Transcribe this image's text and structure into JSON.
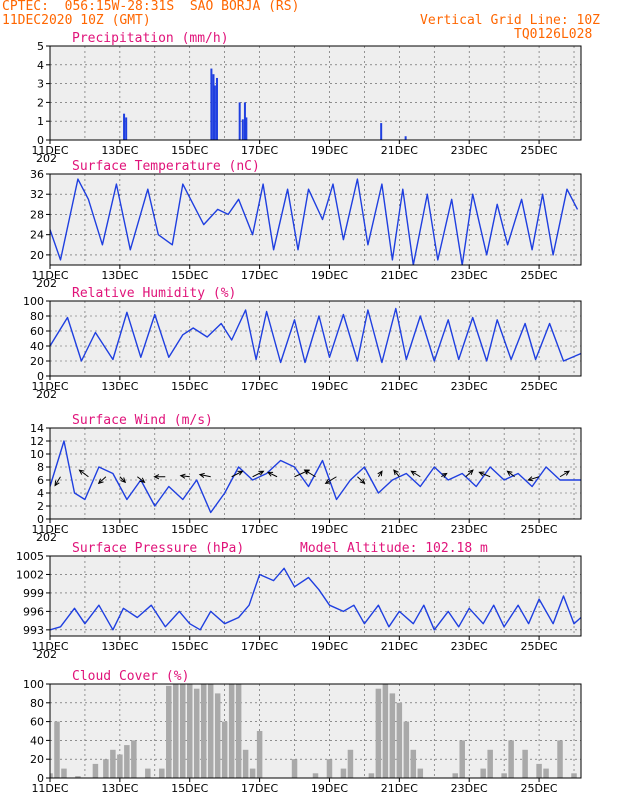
{
  "header": {
    "line1": "CPTEC:  056:15W-28:31S  SAO BORJA (RS)",
    "line2": "11DEC2020 10Z (GMT)",
    "grid_note": "Vertical Grid Line: 10Z",
    "code": "TQ0126L028",
    "year_stub": "202"
  },
  "colors": {
    "header": "#ff6600",
    "title": "#e0137a",
    "line": "#1f3fe0",
    "bar": "#1f3fe0",
    "cloud": "#a9a9a9",
    "plot_bg": "#eeeeee",
    "arrow": "#000000"
  },
  "x_axis": {
    "ticks": [
      "11DEC",
      "13DEC",
      "15DEC",
      "17DEC",
      "19DEC",
      "21DEC",
      "23DEC",
      "25DEC"
    ],
    "start_day": 11,
    "end_day": 26.2
  },
  "chart_data": [
    {
      "type": "bar",
      "title": "Precipitation (mm/h)",
      "ylim": [
        0,
        5
      ],
      "yticks": [
        "0",
        "1",
        "2",
        "3",
        "4",
        "5"
      ],
      "x_days": [
        13.12,
        13.18,
        15.62,
        15.68,
        15.72,
        15.78,
        16.43,
        16.52,
        16.58,
        16.62,
        20.48,
        21.18
      ],
      "values": [
        1.4,
        1.2,
        3.8,
        3.5,
        2.9,
        3.3,
        2.0,
        1.1,
        2.0,
        1.2,
        0.9,
        0.2
      ]
    },
    {
      "type": "line",
      "title": "Surface Temperature (nC)",
      "ylim": [
        18,
        36
      ],
      "yticks": [
        "20",
        "24",
        "28",
        "32",
        "36"
      ],
      "x_days": [
        11.0,
        11.3,
        11.8,
        12.1,
        12.5,
        12.9,
        13.3,
        13.8,
        14.1,
        14.5,
        14.8,
        15.1,
        15.4,
        15.8,
        16.1,
        16.4,
        16.8,
        17.1,
        17.4,
        17.8,
        18.1,
        18.4,
        18.8,
        19.1,
        19.4,
        19.8,
        20.1,
        20.5,
        20.8,
        21.1,
        21.4,
        21.8,
        22.1,
        22.5,
        22.8,
        23.1,
        23.5,
        23.8,
        24.1,
        24.5,
        24.8,
        25.1,
        25.4,
        25.8,
        26.1
      ],
      "values": [
        25,
        19,
        35,
        31,
        22,
        34,
        21,
        33,
        24,
        22,
        34,
        30,
        26,
        29,
        28,
        31,
        24,
        34,
        21,
        33,
        21,
        33,
        27,
        34,
        23,
        35,
        22,
        34,
        19,
        33,
        18,
        32,
        19,
        31,
        18,
        32,
        20,
        30,
        22,
        31,
        21,
        32,
        20,
        33,
        29
      ]
    },
    {
      "type": "line",
      "title": "Relative Humidity (%)",
      "ylim": [
        0,
        100
      ],
      "yticks": [
        "0",
        "20",
        "40",
        "60",
        "80",
        "100"
      ],
      "x_days": [
        11.0,
        11.5,
        11.9,
        12.3,
        12.8,
        13.2,
        13.6,
        14.0,
        14.4,
        14.8,
        15.1,
        15.5,
        15.9,
        16.2,
        16.6,
        16.9,
        17.2,
        17.6,
        18.0,
        18.3,
        18.7,
        19.0,
        19.4,
        19.8,
        20.1,
        20.5,
        20.9,
        21.2,
        21.6,
        22.0,
        22.4,
        22.7,
        23.1,
        23.5,
        23.8,
        24.2,
        24.6,
        24.9,
        25.3,
        25.7,
        26.2
      ],
      "values": [
        40,
        78,
        20,
        58,
        22,
        85,
        25,
        82,
        25,
        55,
        64,
        52,
        70,
        48,
        88,
        22,
        86,
        18,
        75,
        18,
        80,
        25,
        82,
        20,
        88,
        18,
        90,
        22,
        80,
        20,
        75,
        22,
        78,
        20,
        75,
        22,
        70,
        22,
        70,
        20,
        30
      ]
    },
    {
      "type": "line",
      "title": "Surface Wind (m/s)",
      "ylim": [
        0,
        14
      ],
      "yticks": [
        "0",
        "2",
        "4",
        "6",
        "8",
        "10",
        "12",
        "14"
      ],
      "x_days": [
        11.0,
        11.4,
        11.7,
        12.0,
        12.4,
        12.8,
        13.2,
        13.6,
        14.0,
        14.4,
        14.8,
        15.2,
        15.6,
        16.0,
        16.4,
        16.8,
        17.2,
        17.6,
        18.0,
        18.4,
        18.8,
        19.2,
        19.6,
        20.0,
        20.4,
        20.8,
        21.2,
        21.6,
        22.0,
        22.4,
        22.8,
        23.2,
        23.6,
        24.0,
        24.4,
        24.8,
        25.2,
        25.6,
        26.2
      ],
      "values": [
        5,
        12,
        4,
        3,
        8,
        7,
        3,
        6,
        2,
        5,
        3,
        6,
        1,
        4,
        8,
        6,
        7,
        9,
        8,
        5,
        9,
        3,
        6,
        8,
        4,
        6,
        7,
        5,
        8,
        6,
        7,
        5,
        8,
        6,
        7,
        5,
        8,
        6,
        6
      ],
      "arrows": {
        "x_days": [
          11.3,
          12.1,
          12.6,
          13.0,
          13.5,
          14.3,
          15.0,
          15.6,
          16.2,
          16.8,
          17.5,
          18.0,
          18.6,
          19.2,
          19.8,
          20.4,
          21.0,
          21.6,
          22.2,
          22.9,
          23.6,
          24.3,
          25.0,
          25.6
        ],
        "dx": [
          -3,
          -5,
          -4,
          3,
          4,
          -6,
          -5,
          -6,
          6,
          6,
          -5,
          8,
          -6,
          -6,
          4,
          2,
          -3,
          -5,
          3,
          4,
          -6,
          -4,
          -6,
          5
        ],
        "dy": [
          8,
          -6,
          6,
          5,
          5,
          0,
          -1,
          -2,
          -5,
          -5,
          -4,
          -6,
          -6,
          6,
          6,
          -5,
          -6,
          -5,
          -3,
          -6,
          -4,
          -5,
          3,
          -5
        ]
      }
    },
    {
      "type": "line",
      "title": "Surface Pressure (hPa)",
      "subtitle": "Model Altitude: 102.18 m",
      "ylim": [
        992,
        1005
      ],
      "yticks": [
        "993",
        "996",
        "999",
        "1002",
        "1005"
      ],
      "x_days": [
        11.0,
        11.3,
        11.7,
        12.0,
        12.4,
        12.8,
        13.1,
        13.5,
        13.9,
        14.3,
        14.7,
        15.0,
        15.3,
        15.6,
        16.0,
        16.4,
        16.7,
        17.0,
        17.4,
        17.7,
        18.0,
        18.4,
        18.7,
        19.0,
        19.4,
        19.7,
        20.0,
        20.4,
        20.7,
        21.0,
        21.4,
        21.7,
        22.0,
        22.4,
        22.7,
        23.0,
        23.4,
        23.7,
        24.0,
        24.4,
        24.7,
        25.0,
        25.4,
        25.7,
        26.0,
        26.2
      ],
      "values": [
        993,
        993.5,
        996.5,
        994,
        997,
        993,
        996.5,
        995,
        997,
        993.5,
        996,
        994,
        993,
        996,
        994,
        995,
        997,
        1002,
        1001,
        1003,
        1000,
        1001.5,
        999.5,
        997,
        996,
        997,
        994,
        997,
        993.5,
        996,
        994,
        997,
        993,
        996,
        993.5,
        996.5,
        994,
        997,
        993.5,
        997,
        994,
        998,
        994,
        998.5,
        994,
        995
      ]
    },
    {
      "type": "bar",
      "title": "Cloud Cover (%)",
      "ylim": [
        0,
        100
      ],
      "yticks": [
        "0",
        "20",
        "40",
        "60",
        "80",
        "100"
      ],
      "x_days": [
        11.0,
        11.2,
        11.4,
        11.6,
        11.8,
        12.0,
        12.3,
        12.6,
        12.8,
        13.0,
        13.2,
        13.4,
        13.6,
        13.8,
        14.0,
        14.2,
        14.4,
        14.6,
        14.8,
        15.0,
        15.2,
        15.4,
        15.6,
        15.8,
        16.0,
        16.2,
        16.4,
        16.6,
        16.8,
        17.0,
        17.2,
        17.4,
        17.6,
        17.8,
        18.0,
        18.3,
        18.6,
        18.8,
        19.0,
        19.2,
        19.4,
        19.6,
        19.8,
        20.0,
        20.2,
        20.4,
        20.6,
        20.8,
        21.0,
        21.2,
        21.4,
        21.6,
        21.8,
        22.0,
        22.2,
        22.4,
        22.6,
        22.8,
        23.0,
        23.2,
        23.4,
        23.6,
        23.8,
        24.0,
        24.2,
        24.4,
        24.6,
        24.8,
        25.0,
        25.2,
        25.4,
        25.6,
        25.8,
        26.0
      ],
      "values": [
        5,
        60,
        10,
        0,
        2,
        0,
        15,
        20,
        30,
        25,
        35,
        40,
        0,
        10,
        0,
        10,
        98,
        100,
        100,
        100,
        95,
        100,
        100,
        90,
        60,
        100,
        100,
        30,
        10,
        50,
        0,
        0,
        0,
        0,
        20,
        0,
        5,
        0,
        20,
        0,
        10,
        30,
        0,
        0,
        5,
        95,
        100,
        90,
        80,
        60,
        30,
        10,
        0,
        0,
        0,
        0,
        5,
        40,
        0,
        0,
        10,
        30,
        0,
        5,
        40,
        0,
        30,
        0,
        15,
        10,
        0,
        40,
        0,
        5
      ]
    }
  ]
}
